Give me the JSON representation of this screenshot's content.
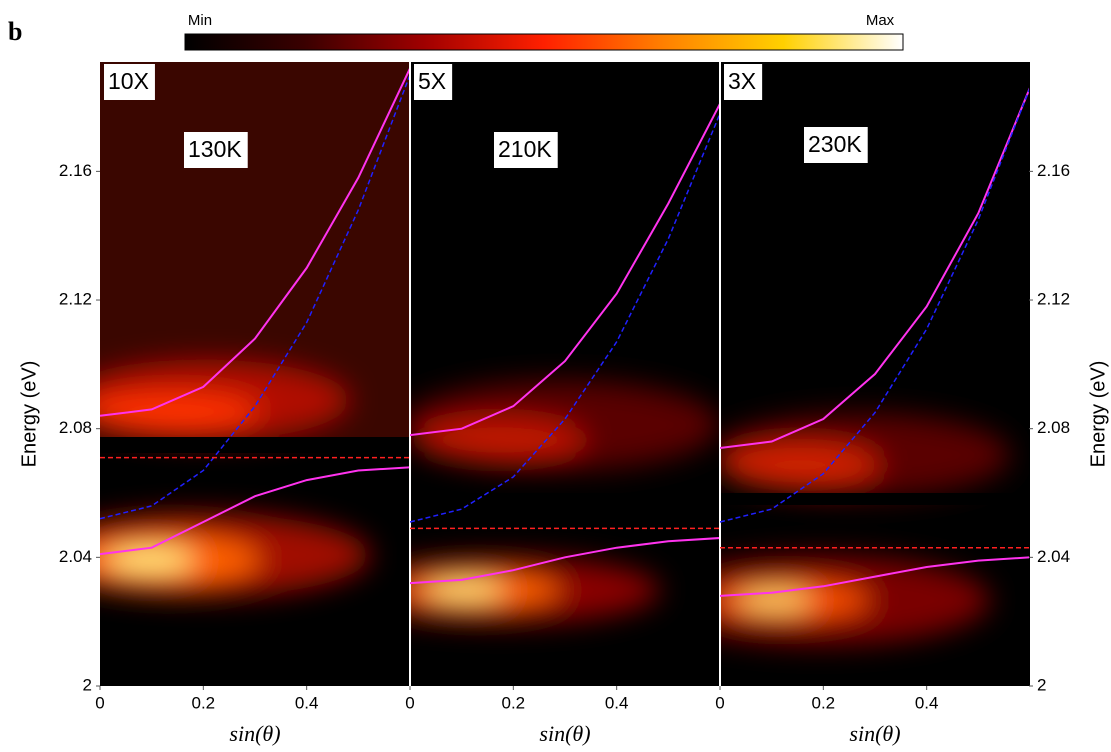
{
  "panel_label": "b",
  "colorbar": {
    "min_label": "Min",
    "max_label": "Max",
    "colors": [
      "#000000",
      "#3a0000",
      "#a00000",
      "#ff2000",
      "#ff8000",
      "#ffd000",
      "#ffffff"
    ]
  },
  "chart_data": [
    {
      "type": "line",
      "magnification": "10X",
      "temperature": "130K",
      "ylabel": "Energy (eV)",
      "yaxis_side": "left",
      "xlabel": "sin(θ)",
      "x": [
        0,
        0.1,
        0.2,
        0.3,
        0.4,
        0.5,
        0.6
      ],
      "xlim": [
        0,
        0.6
      ],
      "xticks": [
        0,
        0.2,
        0.4
      ],
      "ylim": [
        2,
        2.194
      ],
      "yticks": [
        2,
        2.04,
        2.08,
        2.12,
        2.16
      ],
      "series": [
        {
          "color": "#ff33ee",
          "style": "solid",
          "values": [
            2.084,
            2.086,
            2.093,
            2.108,
            2.13,
            2.158,
            2.192
          ]
        },
        {
          "color": "#ff33ee",
          "style": "solid",
          "values": [
            2.041,
            2.043,
            2.051,
            2.059,
            2.064,
            2.067,
            2.068
          ]
        },
        {
          "color": "#2020ff",
          "style": "dashed",
          "values": [
            2.052,
            2.056,
            2.067,
            2.087,
            2.113,
            2.148,
            2.19
          ]
        },
        {
          "color": "#ff2020",
          "style": "dashed",
          "values": [
            2.071,
            2.071,
            2.071,
            2.071,
            2.071,
            2.071,
            2.071
          ]
        }
      ]
    },
    {
      "type": "line",
      "magnification": "5X",
      "temperature": "210K",
      "xlabel": "sin(θ)",
      "x": [
        0,
        0.1,
        0.2,
        0.3,
        0.4,
        0.5,
        0.6
      ],
      "xlim": [
        0,
        0.6
      ],
      "xticks": [
        0,
        0.2,
        0.4
      ],
      "ylim": [
        2,
        2.194
      ],
      "series": [
        {
          "color": "#ff33ee",
          "style": "solid",
          "values": [
            2.078,
            2.08,
            2.087,
            2.101,
            2.122,
            2.15,
            2.181
          ]
        },
        {
          "color": "#ff33ee",
          "style": "solid",
          "values": [
            2.032,
            2.033,
            2.036,
            2.04,
            2.043,
            2.045,
            2.046
          ]
        },
        {
          "color": "#2020ff",
          "style": "dashed",
          "values": [
            2.051,
            2.055,
            2.065,
            2.083,
            2.107,
            2.139,
            2.178
          ]
        },
        {
          "color": "#ff2020",
          "style": "dashed",
          "values": [
            2.049,
            2.049,
            2.049,
            2.049,
            2.049,
            2.049,
            2.049
          ]
        }
      ]
    },
    {
      "type": "line",
      "magnification": "3X",
      "temperature": "230K",
      "ylabel": "Energy (eV)",
      "yaxis_side": "right",
      "xlabel": "sin(θ)",
      "x": [
        0,
        0.1,
        0.2,
        0.3,
        0.4,
        0.5,
        0.6
      ],
      "xlim": [
        0,
        0.6
      ],
      "xticks": [
        0,
        0.2,
        0.4
      ],
      "ylim": [
        2,
        2.194
      ],
      "yticks": [
        2,
        2.04,
        2.08,
        2.12,
        2.16
      ],
      "series": [
        {
          "color": "#ff33ee",
          "style": "solid",
          "values": [
            2.074,
            2.076,
            2.083,
            2.097,
            2.118,
            2.147,
            2.186
          ]
        },
        {
          "color": "#ff33ee",
          "style": "solid",
          "values": [
            2.028,
            2.029,
            2.031,
            2.034,
            2.037,
            2.039,
            2.04
          ]
        },
        {
          "color": "#2020ff",
          "style": "dashed",
          "values": [
            2.051,
            2.055,
            2.066,
            2.085,
            2.111,
            2.145,
            2.186
          ]
        },
        {
          "color": "#ff2020",
          "style": "dashed",
          "values": [
            2.043,
            2.043,
            2.043,
            2.043,
            2.043,
            2.043,
            2.043
          ]
        }
      ]
    }
  ]
}
